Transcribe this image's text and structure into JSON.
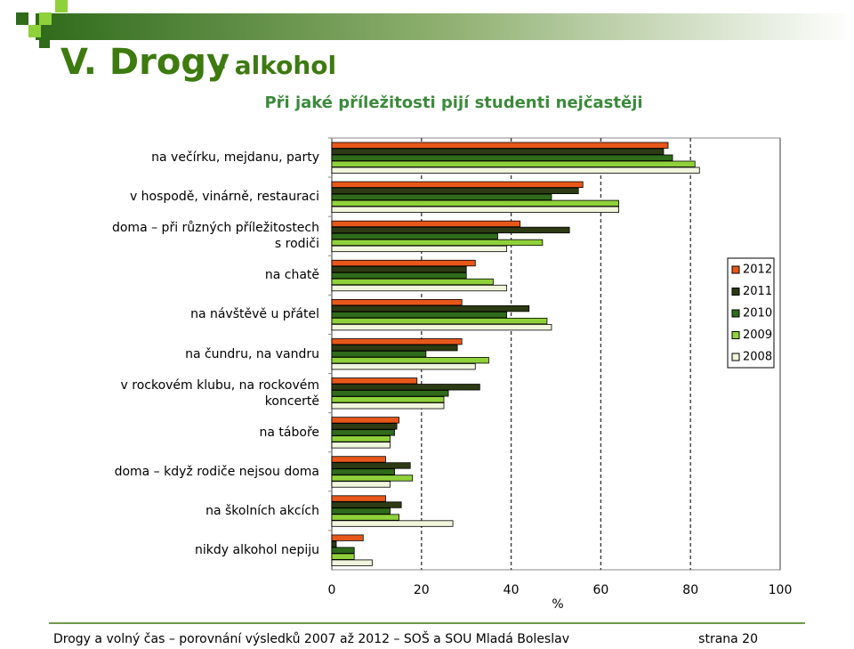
{
  "slide": {
    "title": "V. Drogy",
    "subtitle": "– alkohol",
    "footer": "Drogy a volný čas – porovnání výsledků 2007 až 2012 – SOŠ a SOU Mladá Boleslav",
    "page": "strana 20"
  },
  "chart_data": {
    "type": "hbar",
    "title": "Při jaké příležitosti pijí studenti nejčastěji",
    "x_label": "%",
    "categories": [
      "na večírku, mejdanu, party",
      "v hospodě, vinárně, restauraci",
      "doma – při různých příležitostech\ns rodiči",
      "na chatě",
      "na návštěvě u přátel",
      "na čundru, na vandru",
      "v rockovém klubu, na rockovém\nkoncertě",
      "na táboře",
      "doma – když rodiče nejsou doma",
      "na školních akcích",
      "nikdy alkohol nepiju"
    ],
    "series": [
      {
        "name": "2012",
        "color": "#e8571a",
        "values": [
          75,
          56,
          42,
          32,
          29,
          29,
          19,
          15,
          12,
          12,
          7
        ]
      },
      {
        "name": "2011",
        "color": "#2d3b14",
        "values": [
          74,
          55,
          53,
          30,
          44,
          28,
          33,
          14.5,
          17.5,
          15.5,
          1
        ]
      },
      {
        "name": "2010",
        "color": "#2f6b1a",
        "values": [
          76,
          49,
          37,
          30,
          39,
          21,
          26,
          14,
          14,
          13,
          5
        ]
      },
      {
        "name": "2009",
        "color": "#8fd13a",
        "values": [
          81,
          64,
          47,
          36,
          48,
          35,
          25,
          13,
          18,
          15,
          5
        ]
      },
      {
        "name": "2008",
        "color": "#f0f5dc",
        "values": [
          82,
          64,
          39,
          39,
          49,
          32,
          25,
          13,
          13,
          27,
          9
        ]
      }
    ],
    "xlim": [
      0,
      100
    ],
    "xticks": [
      0,
      20,
      40,
      60,
      80,
      100
    ],
    "grid": true,
    "legend": "right"
  }
}
